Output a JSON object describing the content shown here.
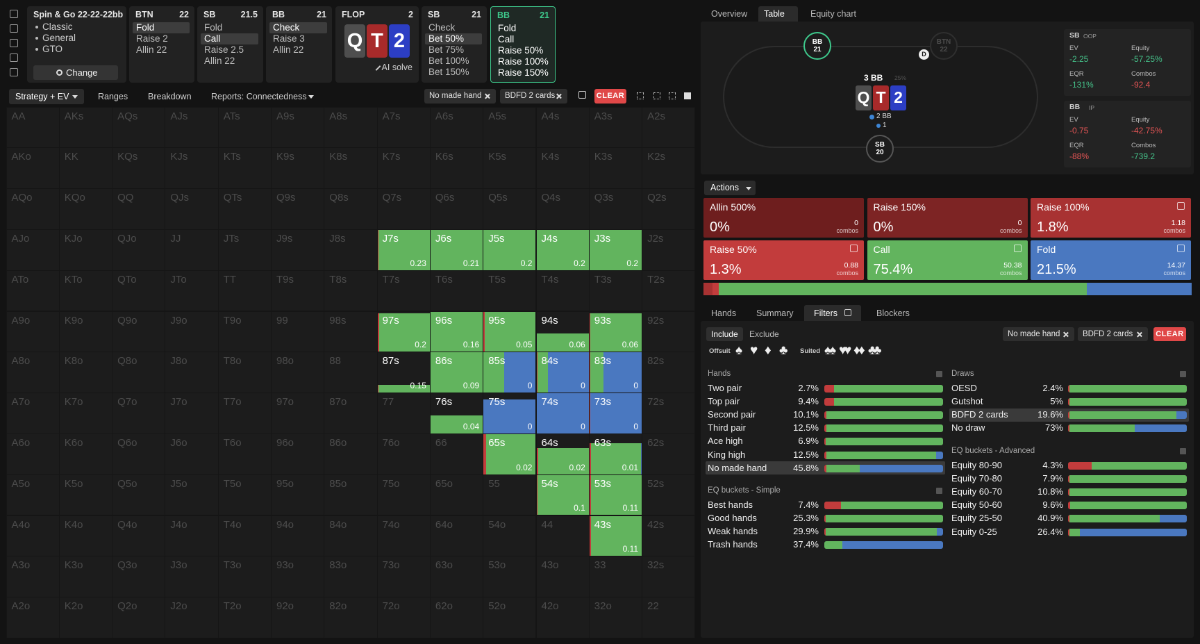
{
  "colors": {
    "raise": "#c23c3c",
    "raise_dark": "#7a2323",
    "call": "#62b45e",
    "fold": "#4a78c0",
    "current": "#3ec98c",
    "up": "#45c189",
    "down": "#e25454"
  },
  "header": {
    "game": {
      "title": "Spin & Go 22-22-22bb",
      "items": [
        "Classic",
        "General",
        "GTO"
      ],
      "button": "Change"
    },
    "streets": [
      {
        "label": "BTN",
        "stack": "22",
        "options": [
          {
            "text": "Fold",
            "active": true
          },
          {
            "text": "Raise 2",
            "active": false
          },
          {
            "text": "Allin 22",
            "active": false
          }
        ]
      },
      {
        "label": "SB",
        "stack": "21.5",
        "options": [
          {
            "text": "Fold",
            "active": false
          },
          {
            "text": "Call",
            "active": true
          },
          {
            "text": "Raise 2.5",
            "active": false
          },
          {
            "text": "Allin 22",
            "active": false
          }
        ]
      },
      {
        "label": "BB",
        "stack": "21",
        "options": [
          {
            "text": "Check",
            "active": true
          },
          {
            "text": "Raise 3",
            "active": false
          },
          {
            "text": "Allin 22",
            "active": false
          }
        ]
      },
      {
        "label": "FLOP",
        "stack": "2",
        "cards": [
          {
            "rank": "Q",
            "color": "#4e4e4e"
          },
          {
            "rank": "T",
            "color": "#a82a2a"
          },
          {
            "rank": "2",
            "color": "#2c3ec4"
          }
        ],
        "button": "AI solve"
      },
      {
        "label": "SB",
        "stack": "21",
        "options": [
          {
            "text": "Check",
            "active": false
          },
          {
            "text": "Bet 50%",
            "active": true
          },
          {
            "text": "Bet 75%",
            "active": false
          },
          {
            "text": "Bet 100%",
            "active": false
          },
          {
            "text": "Bet 150%",
            "active": false
          }
        ]
      },
      {
        "label": "BB",
        "stack": "21",
        "current": true,
        "options": [
          {
            "text": "Fold",
            "active": false
          },
          {
            "text": "Call",
            "active": false
          },
          {
            "text": "Raise 50%",
            "active": false
          },
          {
            "text": "Raise 100%",
            "active": false
          },
          {
            "text": "Raise 150%",
            "active": false
          }
        ]
      }
    ]
  },
  "toolbar": {
    "views": [
      "Strategy + EV",
      "Ranges",
      "Breakdown",
      "Reports: Connectedness"
    ],
    "chips": [
      "No made hand",
      "BDFD 2 cards"
    ],
    "clear": "CLEAR"
  },
  "grid": {
    "rows": [
      [
        "AA",
        "AKs",
        "AQs",
        "AJs",
        "ATs",
        "A9s",
        "A8s",
        "A7s",
        "A6s",
        "A5s",
        "A4s",
        "A3s",
        "A2s"
      ],
      [
        "AKo",
        "KK",
        "KQs",
        "KJs",
        "KTs",
        "K9s",
        "K8s",
        "K7s",
        "K6s",
        "K5s",
        "K4s",
        "K3s",
        "K2s"
      ],
      [
        "AQo",
        "KQo",
        "QQ",
        "QJs",
        "QTs",
        "Q9s",
        "Q8s",
        "Q7s",
        "Q6s",
        "Q5s",
        "Q4s",
        "Q3s",
        "Q2s"
      ],
      [
        "AJo",
        "KJo",
        "QJo",
        "JJ",
        "JTs",
        "J9s",
        "J8s",
        {
          "hand": "J7s",
          "combos": 0.23,
          "fill": 1,
          "mix": [
            0.02,
            0.98,
            0
          ]
        },
        {
          "hand": "J6s",
          "combos": 0.21,
          "fill": 1,
          "mix": [
            0,
            1,
            0
          ]
        },
        {
          "hand": "J5s",
          "combos": 0.2,
          "fill": 1,
          "mix": [
            0,
            1,
            0
          ]
        },
        {
          "hand": "J4s",
          "combos": 0.2,
          "fill": 1,
          "mix": [
            0,
            1,
            0
          ]
        },
        {
          "hand": "J3s",
          "combos": 0.2,
          "fill": 1,
          "mix": [
            0,
            1,
            0
          ]
        },
        "J2s"
      ],
      [
        "ATo",
        "KTo",
        "QTo",
        "JTo",
        "TT",
        "T9s",
        "T8s",
        "T7s",
        "T6s",
        "T5s",
        "T4s",
        "T3s",
        "T2s"
      ],
      [
        "A9o",
        "K9o",
        "Q9o",
        "J9o",
        "T9o",
        "99",
        "98s",
        {
          "hand": "97s",
          "combos": 0.2,
          "fill": 0.95,
          "mix": [
            0.03,
            0.97,
            0
          ]
        },
        {
          "hand": "96s",
          "combos": 0.16,
          "fill": 1,
          "mix": [
            0,
            1,
            0
          ]
        },
        {
          "hand": "95s",
          "combos": 0.05,
          "fill": 1,
          "mix": [
            0.02,
            0.98,
            0
          ]
        },
        {
          "hand": "94s",
          "combos": 0.06,
          "fill": 0.45,
          "mix": [
            0,
            1,
            0
          ]
        },
        {
          "hand": "93s",
          "combos": 0.06,
          "fill": 0.95,
          "mix": [
            0.02,
            0.98,
            0
          ]
        },
        "92s"
      ],
      [
        "A8o",
        "K8o",
        "Q8o",
        "J8o",
        "T8o",
        "98o",
        "88",
        {
          "hand": "87s",
          "combos": 0.15,
          "fill": 0.2,
          "mix": [
            0.02,
            0.98,
            0
          ]
        },
        {
          "hand": "86s",
          "combos": 0.09,
          "fill": 1,
          "mix": [
            0,
            1,
            0
          ]
        },
        {
          "hand": "85s",
          "combos": 0,
          "fill": 1,
          "mix": [
            0,
            0.4,
            0.6
          ]
        },
        {
          "hand": "84s",
          "combos": 0,
          "fill": 1,
          "mix": [
            0.02,
            0.2,
            0.78
          ]
        },
        {
          "hand": "83s",
          "combos": 0,
          "fill": 1,
          "mix": [
            0.02,
            0.25,
            0.73
          ]
        },
        "82s"
      ],
      [
        "A7o",
        "K7o",
        "Q7o",
        "J7o",
        "T7o",
        "97o",
        "87o",
        "77",
        {
          "hand": "76s",
          "combos": 0.04,
          "fill": 0.45,
          "mix": [
            0,
            1,
            0
          ]
        },
        {
          "hand": "75s",
          "combos": 0,
          "fill": 0.85,
          "mix": [
            0,
            0,
            1
          ]
        },
        {
          "hand": "74s",
          "combos": 0,
          "fill": 1,
          "mix": [
            0,
            0,
            1
          ]
        },
        {
          "hand": "73s",
          "combos": 0,
          "fill": 1,
          "mix": [
            0.02,
            0,
            0.98
          ]
        },
        "72s"
      ],
      [
        "A6o",
        "K6o",
        "Q6o",
        "J6o",
        "T6o",
        "96o",
        "86o",
        "76o",
        "66",
        {
          "hand": "65s",
          "combos": 0.02,
          "fill": 1,
          "mix": [
            0.05,
            0.95,
            0
          ]
        },
        {
          "hand": "64s",
          "combos": 0.02,
          "fill": 0.65,
          "mix": [
            0.03,
            0.97,
            0
          ]
        },
        {
          "hand": "63s",
          "combos": 0.01,
          "fill": 0.78,
          "mix": [
            0.03,
            0.96,
            0.01
          ]
        },
        "62s"
      ],
      [
        "A5o",
        "K5o",
        "Q5o",
        "J5o",
        "T5o",
        "95o",
        "85o",
        "75o",
        "65o",
        "55",
        {
          "hand": "54s",
          "combos": 0.1,
          "fill": 1,
          "mix": [
            0.02,
            0.98,
            0
          ]
        },
        {
          "hand": "53s",
          "combos": 0.11,
          "fill": 1,
          "mix": [
            0.03,
            0.97,
            0
          ]
        },
        "52s"
      ],
      [
        "A4o",
        "K4o",
        "Q4o",
        "J4o",
        "T4o",
        "94o",
        "84o",
        "74o",
        "64o",
        "54o",
        "44",
        {
          "hand": "43s",
          "combos": 0.11,
          "fill": 1,
          "mix": [
            0.03,
            0.97,
            0
          ]
        },
        "42s"
      ],
      [
        "A3o",
        "K3o",
        "Q3o",
        "J3o",
        "T3o",
        "93o",
        "83o",
        "73o",
        "63o",
        "53o",
        "43o",
        "33",
        "32s"
      ],
      [
        "A2o",
        "K2o",
        "Q2o",
        "J2o",
        "T2o",
        "92o",
        "82o",
        "72o",
        "62o",
        "52o",
        "42o",
        "32o",
        "22"
      ]
    ]
  },
  "panel_tabs": {
    "items": [
      "Overview",
      "Table",
      "Equity chart"
    ],
    "active": 1
  },
  "table": {
    "seats": [
      {
        "name": "BB",
        "stack": "21",
        "active": true
      },
      {
        "name": "BTN",
        "stack": "22",
        "active": false
      },
      {
        "name": "SB",
        "stack": "20",
        "active": false
      }
    ],
    "dealer": "D",
    "pot": "3 BB",
    "pot_pct": "25%",
    "bet": "2 BB",
    "bet_small": "1",
    "board": [
      {
        "rank": "Q",
        "color": "#4e4e4e"
      },
      {
        "rank": "T",
        "color": "#a82a2a"
      },
      {
        "rank": "2",
        "color": "#2c3ec4"
      }
    ]
  },
  "stats": [
    {
      "title": "SB",
      "tag": "OOP",
      "items": [
        {
          "label": "EV",
          "value": "-2.25",
          "trend": "up"
        },
        {
          "label": "Equity",
          "value": "-57.25%",
          "trend": "up"
        },
        {
          "label": "EQR",
          "value": "-131%",
          "trend": "up"
        },
        {
          "label": "Combos",
          "value": "-92.4",
          "trend": "down"
        }
      ]
    },
    {
      "title": "BB",
      "tag": "IP",
      "items": [
        {
          "label": "EV",
          "value": "-0.75",
          "trend": "down"
        },
        {
          "label": "Equity",
          "value": "-42.75%",
          "trend": "down"
        },
        {
          "label": "EQR",
          "value": "-88%",
          "trend": "down"
        },
        {
          "label": "Combos",
          "value": "-739.2",
          "trend": "up"
        }
      ]
    }
  ],
  "actions": {
    "button": "Actions",
    "combos_label": "combos",
    "tiles": [
      {
        "name": "Allin 500%",
        "value": 0,
        "label": "0%",
        "combos": "0",
        "color": "#6e1e1e"
      },
      {
        "name": "Raise 150%",
        "value": 0,
        "label": "0%",
        "combos": "0",
        "color": "#7d2424"
      },
      {
        "name": "Raise 100%",
        "value": 1.8,
        "label": "1.8%",
        "combos": "1.18",
        "color": "#a83232"
      },
      {
        "name": "Raise 50%",
        "value": 1.3,
        "label": "1.3%",
        "combos": "0.88",
        "color": "#c23c3c"
      },
      {
        "name": "Call",
        "value": 75.4,
        "label": "75.4%",
        "combos": "50.38",
        "color": "#62b45e"
      },
      {
        "name": "Fold",
        "value": 21.5,
        "label": "21.5%",
        "combos": "14.37",
        "color": "#4a78c0"
      }
    ]
  },
  "lower_tabs": {
    "items": [
      "Hands",
      "Summary",
      "Filters",
      "Blockers"
    ],
    "active": 2
  },
  "filters": {
    "modes": [
      "Include",
      "Exclude"
    ],
    "chips": [
      "No made hand",
      "BDFD 2 cards"
    ],
    "clear": "CLEAR",
    "offsuit": "Offsuit",
    "suited": "Suited",
    "suits": [
      "♠",
      "♥",
      "♦",
      "♣"
    ],
    "groups": [
      {
        "title": "Hands",
        "rows": [
          {
            "name": "Two pair",
            "pct": "2.7%",
            "mix": [
              0.08,
              0.92,
              0
            ]
          },
          {
            "name": "Top pair",
            "pct": "9.4%",
            "mix": [
              0.08,
              0.92,
              0
            ]
          },
          {
            "name": "Second pair",
            "pct": "10.1%",
            "mix": [
              0.02,
              0.98,
              0
            ]
          },
          {
            "name": "Third pair",
            "pct": "12.5%",
            "mix": [
              0.02,
              0.98,
              0
            ]
          },
          {
            "name": "Ace high",
            "pct": "6.9%",
            "mix": [
              0.01,
              0.99,
              0
            ]
          },
          {
            "name": "King high",
            "pct": "12.5%",
            "mix": [
              0.02,
              0.92,
              0.06
            ]
          },
          {
            "name": "No made hand",
            "pct": "45.8%",
            "mix": [
              0.02,
              0.28,
              0.7
            ],
            "selected": true
          }
        ]
      },
      {
        "title": "EQ buckets - Simple",
        "rows": [
          {
            "name": "Best hands",
            "pct": "7.4%",
            "mix": [
              0.14,
              0.86,
              0
            ]
          },
          {
            "name": "Good hands",
            "pct": "25.3%",
            "mix": [
              0.01,
              0.99,
              0
            ]
          },
          {
            "name": "Weak hands",
            "pct": "29.9%",
            "mix": [
              0.01,
              0.94,
              0.05
            ]
          },
          {
            "name": "Trash hands",
            "pct": "37.4%",
            "mix": [
              0,
              0.15,
              0.85
            ]
          }
        ]
      },
      {
        "title": "Draws",
        "rows": [
          {
            "name": "OESD",
            "pct": "2.4%",
            "mix": [
              0.01,
              0.99,
              0
            ]
          },
          {
            "name": "Gutshot",
            "pct": "5%",
            "mix": [
              0.01,
              0.99,
              0
            ]
          },
          {
            "name": "BDFD 2 cards",
            "pct": "19.6%",
            "mix": [
              0.01,
              0.9,
              0.09
            ],
            "selected": true
          },
          {
            "name": "No draw",
            "pct": "73%",
            "mix": [
              0.01,
              0.55,
              0.44
            ]
          }
        ]
      },
      {
        "title": "EQ buckets - Advanced",
        "rows": [
          {
            "name": "Equity 80-90",
            "pct": "4.3%",
            "mix": [
              0.2,
              0.8,
              0
            ]
          },
          {
            "name": "Equity 70-80",
            "pct": "7.9%",
            "mix": [
              0.01,
              0.99,
              0
            ]
          },
          {
            "name": "Equity 60-70",
            "pct": "10.8%",
            "mix": [
              0.01,
              0.99,
              0
            ]
          },
          {
            "name": "Equity 50-60",
            "pct": "9.6%",
            "mix": [
              0.02,
              0.98,
              0
            ]
          },
          {
            "name": "Equity 25-50",
            "pct": "40.9%",
            "mix": [
              0.01,
              0.76,
              0.23
            ]
          },
          {
            "name": "Equity 0-25",
            "pct": "26.4%",
            "mix": [
              0.01,
              0.09,
              0.9
            ]
          }
        ]
      }
    ]
  }
}
